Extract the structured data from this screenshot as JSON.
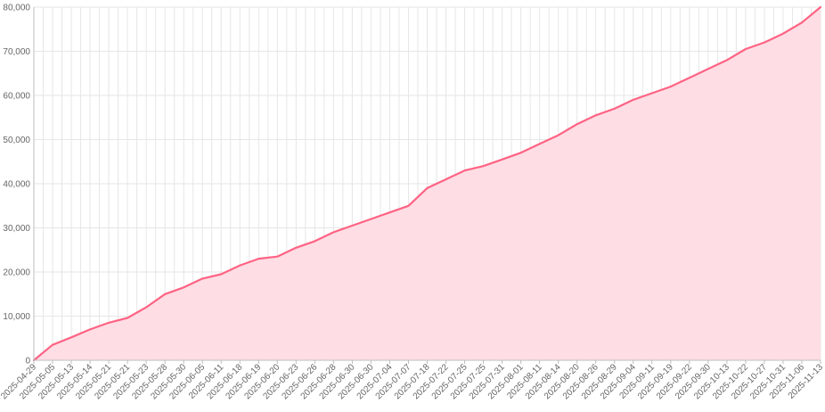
{
  "chart_data": {
    "type": "area",
    "title": "",
    "xlabel": "",
    "ylabel": "",
    "ylim": [
      0,
      80000
    ],
    "yticks": [
      0,
      10000,
      20000,
      30000,
      40000,
      50000,
      60000,
      70000,
      80000
    ],
    "ytick_labels": [
      "0",
      "10,000",
      "20,000",
      "30,000",
      "40,000",
      "50,000",
      "60,000",
      "70,000",
      "80,000"
    ],
    "grid": true,
    "legend": "none",
    "colors": {
      "line": "#ff6384",
      "fill": "#ffdde4"
    },
    "categories": [
      "2025-04-29",
      "2025-05-05",
      "2025-05-13",
      "2025-05-14",
      "2025-05-21",
      "2025-05-21",
      "2025-05-23",
      "2025-05-28",
      "2025-05-30",
      "2025-06-05",
      "2025-06-11",
      "2025-06-18",
      "2025-06-19",
      "2025-06-20",
      "2025-06-23",
      "2025-06-26",
      "2025-06-28",
      "2025-06-30",
      "2025-06-30",
      "2025-07-04",
      "2025-07-07",
      "2025-07-18",
      "2025-07-22",
      "2025-07-25",
      "2025-07-25",
      "2025-07-31",
      "2025-08-01",
      "2025-08-11",
      "2025-08-14",
      "2025-08-20",
      "2025-08-26",
      "2025-08-29",
      "2025-09-04",
      "2025-09-11",
      "2025-09-19",
      "2025-09-22",
      "2025-09-30",
      "2025-10-13",
      "2025-10-22",
      "2025-10-27",
      "2025-10-31",
      "2025-11-06",
      "2025-11-13"
    ],
    "series": [
      {
        "name": "",
        "values": [
          0,
          3500,
          5200,
          7000,
          8500,
          9600,
          12000,
          15000,
          16500,
          18500,
          19500,
          21500,
          23000,
          23500,
          25500,
          27000,
          29000,
          30500,
          32000,
          33500,
          35000,
          39000,
          41000,
          43000,
          44000,
          45500,
          47000,
          49000,
          51000,
          53500,
          55500,
          57000,
          59000,
          60500,
          62000,
          64000,
          66000,
          68000,
          70500,
          72000,
          74000,
          76500,
          80000
        ]
      }
    ]
  }
}
